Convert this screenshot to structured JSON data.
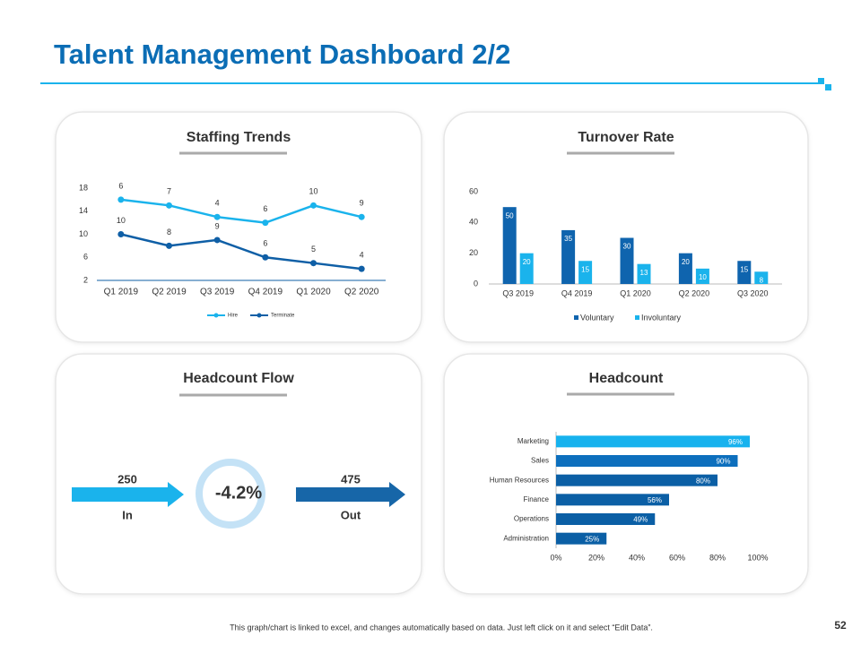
{
  "title": "Talent Management Dashboard 2/2",
  "footer": "This graph/chart is linked to excel, and changes automatically based on data. Just left click on it and select “Edit Data”.",
  "page_number": "52",
  "headcount_flow": {
    "title": "Headcount Flow",
    "in_value": "250",
    "in_label": "In",
    "change": "-4.2%",
    "out_value": "475",
    "out_label": "Out"
  },
  "chart_data": [
    {
      "type": "line",
      "title": "Staffing Trends",
      "stacked": true,
      "categories": [
        "Q1 2019",
        "Q2 2019",
        "Q3 2019",
        "Q4 2019",
        "Q1 2020",
        "Q2 2020"
      ],
      "series": [
        {
          "name": "Hire",
          "color": "#1ab3ec",
          "values": [
            6,
            7,
            4,
            6,
            10,
            9
          ]
        },
        {
          "name": "Terminate",
          "color": "#0f5fa6",
          "values": [
            10,
            8,
            9,
            6,
            5,
            4
          ]
        }
      ],
      "ylim": [
        2,
        18
      ],
      "yticks": [
        2,
        6,
        10,
        14,
        18
      ]
    },
    {
      "type": "bar",
      "title": "Turnover Rate",
      "categories": [
        "Q3 2019",
        "Q4 2019",
        "Q1 2020",
        "Q2 2020",
        "Q3 2020"
      ],
      "series": [
        {
          "name": "Voluntary",
          "color": "#0f64ae",
          "values": [
            50,
            35,
            30,
            20,
            15
          ]
        },
        {
          "name": "Involuntary",
          "color": "#1ab3ec",
          "values": [
            20,
            15,
            13,
            10,
            8
          ]
        }
      ],
      "ylim": [
        0,
        60
      ],
      "yticks": [
        0,
        20,
        40,
        60
      ]
    },
    {
      "type": "hbar",
      "title": "Headcount",
      "categories": [
        "Marketing",
        "Sales",
        "Human Resources",
        "Finance",
        "Operations",
        "Administration"
      ],
      "values": [
        96,
        90,
        80,
        56,
        49,
        25
      ],
      "value_labels": [
        "96%",
        "90%",
        "80%",
        "56%",
        "49%",
        "25%"
      ],
      "colors": [
        "#17b2ee",
        "#0d6fbd",
        "#0b5fa5",
        "#0b5fa5",
        "#0b5fa5",
        "#0b5fa5"
      ],
      "xlim": [
        0,
        100
      ],
      "xticks": [
        {
          "value": 0,
          "label": "0%"
        },
        {
          "value": 20,
          "label": "20%"
        },
        {
          "value": 40,
          "label": "40%"
        },
        {
          "value": 60,
          "label": "60%"
        },
        {
          "value": 80,
          "label": "80%"
        },
        {
          "value": 100,
          "label": "100%"
        }
      ]
    }
  ]
}
